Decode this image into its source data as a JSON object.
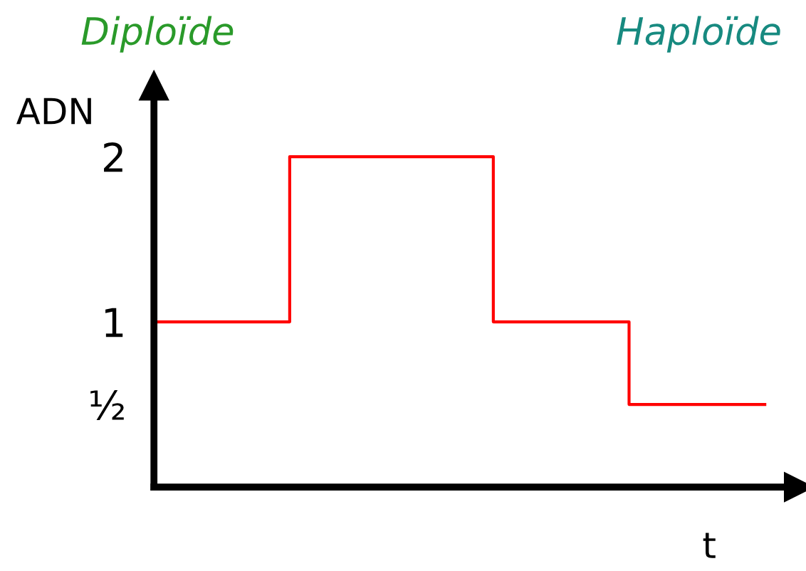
{
  "chart_data": {
    "type": "step",
    "ylabel": "ADN",
    "xlabel": "t",
    "annotations": [
      "Diploïde",
      "Haploïde"
    ],
    "categories": [
      null,
      null,
      null,
      null,
      null,
      null,
      null,
      null,
      null,
      null
    ],
    "series": [
      {
        "color": "#ff0000",
        "values": [
          1,
          1,
          2,
          2,
          2,
          1,
          1,
          0.5,
          0.5,
          0.5
        ]
      }
    ],
    "ylim": [
      0,
      2.43
    ],
    "yticks": [
      {
        "value": 0.5,
        "label": "½"
      },
      1,
      2
    ],
    "tick_labels": "y"
  }
}
